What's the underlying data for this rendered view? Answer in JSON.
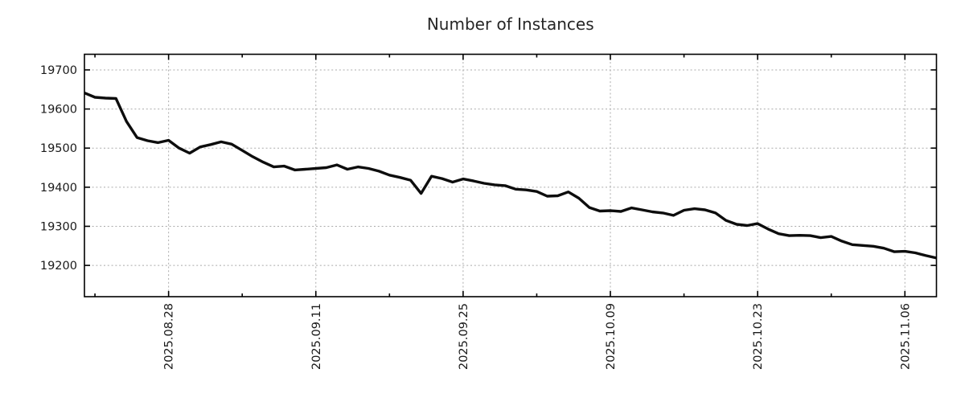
{
  "title": "Number of Instances",
  "colors": {
    "line": "#0d0d0d",
    "grid": "#ababab",
    "axis": "#000000",
    "title_text": "#262626",
    "tick_text": "#1a1a1a",
    "background": "#ffffff"
  },
  "chart_data": {
    "type": "line",
    "title": "Number of Instances",
    "xlabel": "",
    "ylabel": "",
    "grid": true,
    "legend": null,
    "ylim": [
      19120,
      19740
    ],
    "y_ticks": [
      19200,
      19300,
      19400,
      19500,
      19600,
      19700
    ],
    "x_tick_labels": [
      "2025.08.28",
      "2025.09.11",
      "2025.09.25",
      "2025.10.09",
      "2025.10.23",
      "2025.11.06"
    ],
    "x_major_indices": [
      8,
      22,
      36,
      50,
      64,
      78
    ],
    "x_minor_indices": [
      1,
      15,
      29,
      43,
      57,
      71
    ],
    "values": [
      19641,
      19630,
      19628,
      19627,
      19568,
      19527,
      19519,
      19514,
      19520,
      19500,
      19487,
      19503,
      19509,
      19516,
      19510,
      19494,
      19478,
      19464,
      19452,
      19454,
      19444,
      19446,
      19448,
      19450,
      19457,
      19446,
      19452,
      19448,
      19441,
      19431,
      19425,
      19418,
      19384,
      19428,
      19422,
      19413,
      19421,
      19416,
      19410,
      19406,
      19404,
      19395,
      19393,
      19389,
      19377,
      19378,
      19388,
      19372,
      19348,
      19339,
      19340,
      19338,
      19347,
      19342,
      19337,
      19334,
      19328,
      19341,
      19345,
      19342,
      19334,
      19315,
      19305,
      19302,
      19307,
      19293,
      19281,
      19276,
      19277,
      19276,
      19271,
      19274,
      19262,
      19253,
      19251,
      19249,
      19244,
      19235,
      19236,
      19232,
      19225,
      19219
    ]
  }
}
